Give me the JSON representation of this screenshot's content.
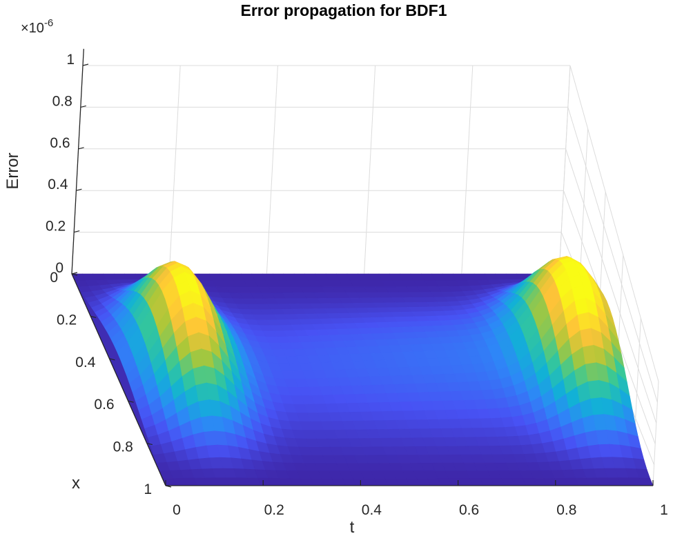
{
  "chart_data": {
    "type": "surface",
    "title": "Error propagation for BDF1",
    "xlabel": "t",
    "ylabel": "x",
    "zlabel": "Error",
    "z_exponent_label": "×10",
    "z_exponent": "-6",
    "t_ticks": [
      "0",
      "0.2",
      "0.4",
      "0.6",
      "0.8",
      "1"
    ],
    "x_ticks": [
      "0",
      "0.2",
      "0.4",
      "0.6",
      "0.8",
      "1"
    ],
    "z_ticks": [
      "0",
      "0.2",
      "0.4",
      "0.6",
      "0.8",
      "1"
    ],
    "tlim": [
      0,
      1
    ],
    "xlim": [
      0,
      1
    ],
    "zlim": [
      0,
      1
    ],
    "grid": "on",
    "colormap": "parula",
    "contour_levels": [
      0.01,
      0.03,
      0.05,
      0.08,
      0.11,
      0.14,
      0.17,
      0.2,
      0.24,
      0.28,
      0.32,
      0.38
    ]
  }
}
